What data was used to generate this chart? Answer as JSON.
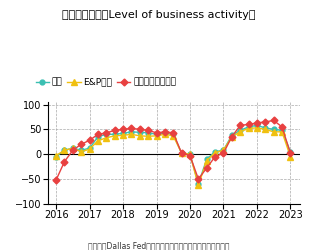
{
  "title": "企業活動指数（Level of business activity）",
  "title_bg": "#3bbfb2",
  "source": "（出所：Dallas Fedより住友商事グローバルリサーチ作成）",
  "legend": [
    "全体",
    "E&P企業",
    "石油ガスサービス"
  ],
  "colors": [
    "#3bbfb2",
    "#f0c010",
    "#e84040"
  ],
  "ylim": [
    -100,
    100
  ],
  "yticks": [
    -100,
    -50,
    0,
    50,
    100
  ],
  "xlabel_years": [
    "2016",
    "2017",
    "2018",
    "2019",
    "2020",
    "2021",
    "2022",
    "2023"
  ],
  "x_values": [
    2016.0,
    2016.25,
    2016.5,
    2016.75,
    2017.0,
    2017.25,
    2017.5,
    2017.75,
    2018.0,
    2018.25,
    2018.5,
    2018.75,
    2019.0,
    2019.25,
    2019.5,
    2019.75,
    2020.0,
    2020.25,
    2020.5,
    2020.75,
    2021.0,
    2021.25,
    2021.5,
    2021.75,
    2022.0,
    2022.25,
    2022.5,
    2022.75,
    2023.0
  ],
  "zentai": [
    -5,
    8,
    12,
    8,
    12,
    35,
    40,
    40,
    42,
    45,
    44,
    43,
    40,
    42,
    40,
    2,
    0,
    -60,
    -10,
    5,
    8,
    38,
    48,
    55,
    58,
    53,
    50,
    48,
    5
  ],
  "ep": [
    -3,
    8,
    12,
    5,
    10,
    27,
    33,
    37,
    38,
    40,
    37,
    36,
    37,
    40,
    37,
    2,
    0,
    -63,
    -13,
    3,
    8,
    35,
    45,
    52,
    53,
    50,
    45,
    45,
    -5
  ],
  "oil_gas": [
    -52,
    -15,
    8,
    20,
    28,
    40,
    43,
    48,
    50,
    52,
    50,
    48,
    43,
    45,
    43,
    2,
    -3,
    -50,
    -28,
    -5,
    2,
    35,
    58,
    60,
    63,
    65,
    68,
    55,
    2
  ]
}
